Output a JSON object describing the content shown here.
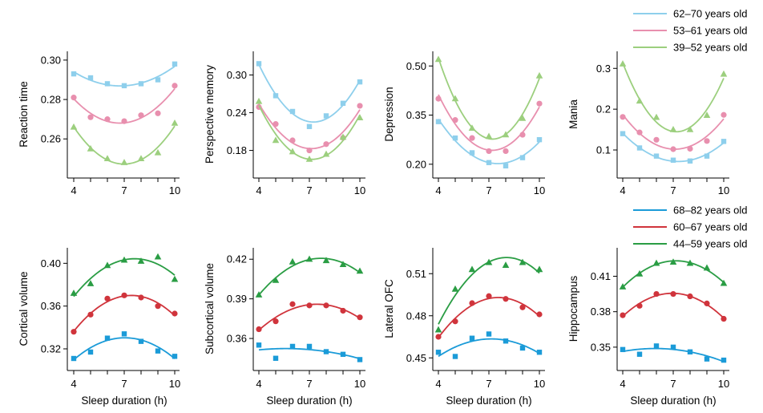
{
  "colors": {
    "top": [
      "#8ecfec",
      "#e88fae",
      "#9ccf7e"
    ],
    "bottom": [
      "#1b9bd8",
      "#d0343c",
      "#2a9d44"
    ]
  },
  "legends": {
    "top": [
      "62–70 years old",
      "53–61 years old",
      "39–52 years old"
    ],
    "bottom": [
      "68–82 years old",
      "60–67 years old",
      "44–59 years old"
    ]
  },
  "xlabel": "Sleep duration (h)",
  "chart_data": [
    {
      "type": "scatter",
      "ylabel": "Reaction time",
      "xlabel": "",
      "xticks": [
        4,
        7,
        10
      ],
      "ylim": [
        0.243,
        0.302
      ],
      "yticks": [
        "0.30",
        "0.28",
        "0.26"
      ],
      "ytick_values": [
        0.3,
        0.28,
        0.26
      ],
      "series": [
        {
          "name": "62–70 years old",
          "marker": "square",
          "x": [
            4,
            5,
            6,
            7,
            8,
            9,
            10
          ],
          "y": [
            0.293,
            0.291,
            0.288,
            0.287,
            0.288,
            0.29,
            0.298
          ]
        },
        {
          "name": "53–61 years old",
          "marker": "circle",
          "x": [
            4,
            5,
            6,
            7,
            8,
            9,
            10
          ],
          "y": [
            0.281,
            0.271,
            0.27,
            0.269,
            0.272,
            0.273,
            0.287
          ]
        },
        {
          "name": "39–52 years old",
          "marker": "triangle",
          "x": [
            4,
            5,
            6,
            7,
            8,
            9,
            10
          ],
          "y": [
            0.266,
            0.255,
            0.25,
            0.248,
            0.25,
            0.253,
            0.268
          ]
        }
      ]
    },
    {
      "type": "scatter",
      "ylabel": "Perspective memory",
      "xlabel": "",
      "xticks": [
        4,
        7,
        10
      ],
      "ylim": [
        0.145,
        0.33
      ],
      "yticks": [
        "0.30",
        "0.24",
        "0.18"
      ],
      "ytick_values": [
        0.3,
        0.24,
        0.18
      ],
      "series": [
        {
          "name": "62–70 years old",
          "marker": "square",
          "x": [
            4,
            5,
            6,
            7,
            8,
            9,
            10
          ],
          "y": [
            0.318,
            0.267,
            0.242,
            0.218,
            0.235,
            0.255,
            0.289
          ]
        },
        {
          "name": "53–61 years old",
          "marker": "circle",
          "x": [
            4,
            5,
            6,
            7,
            8,
            9,
            10
          ],
          "y": [
            0.249,
            0.222,
            0.196,
            0.18,
            0.19,
            0.2,
            0.251
          ]
        },
        {
          "name": "39–52 years old",
          "marker": "triangle",
          "x": [
            4,
            5,
            6,
            7,
            8,
            9,
            10
          ],
          "y": [
            0.258,
            0.196,
            0.178,
            0.166,
            0.174,
            0.201,
            0.232
          ]
        }
      ]
    },
    {
      "type": "scatter",
      "ylabel": "Depression",
      "xlabel": "",
      "xticks": [
        4,
        7,
        10
      ],
      "ylim": [
        0.175,
        0.53
      ],
      "yticks": [
        "0.50",
        "0.35",
        "0.20"
      ],
      "ytick_values": [
        0.5,
        0.35,
        0.2
      ],
      "series": [
        {
          "name": "62–70 years old",
          "marker": "square",
          "x": [
            4,
            5,
            6,
            7,
            8,
            9,
            10
          ],
          "y": [
            0.33,
            0.28,
            0.235,
            0.205,
            0.195,
            0.22,
            0.275
          ]
        },
        {
          "name": "53–61 years old",
          "marker": "circle",
          "x": [
            4,
            5,
            6,
            7,
            8,
            9,
            10
          ],
          "y": [
            0.4,
            0.335,
            0.28,
            0.24,
            0.24,
            0.29,
            0.385
          ]
        },
        {
          "name": "39–52 years old",
          "marker": "triangle",
          "x": [
            4,
            5,
            6,
            7,
            8,
            9,
            10
          ],
          "y": [
            0.52,
            0.4,
            0.31,
            0.285,
            0.29,
            0.34,
            0.47
          ]
        }
      ]
    },
    {
      "type": "scatter",
      "ylabel": "Mania",
      "xlabel": "",
      "xticks": [
        4,
        7,
        10
      ],
      "ylim": [
        0.045,
        0.33
      ],
      "yticks": [
        "0.3",
        "0.2",
        "0.1"
      ],
      "ytick_values": [
        0.3,
        0.2,
        0.1
      ],
      "series": [
        {
          "name": "62–70 years old",
          "marker": "square",
          "x": [
            4,
            5,
            6,
            7,
            8,
            9,
            10
          ],
          "y": [
            0.14,
            0.105,
            0.085,
            0.075,
            0.073,
            0.085,
            0.121
          ]
        },
        {
          "name": "53–61 years old",
          "marker": "circle",
          "x": [
            4,
            5,
            6,
            7,
            8,
            9,
            10
          ],
          "y": [
            0.181,
            0.143,
            0.125,
            0.102,
            0.103,
            0.122,
            0.186
          ]
        },
        {
          "name": "39–52 years old",
          "marker": "triangle",
          "x": [
            4,
            5,
            6,
            7,
            8,
            9,
            10
          ],
          "y": [
            0.311,
            0.22,
            0.18,
            0.15,
            0.15,
            0.185,
            0.286
          ]
        }
      ]
    },
    {
      "type": "scatter",
      "ylabel": "Cortical volume",
      "xlabel": "Sleep duration (h)",
      "xticks": [
        4,
        7,
        10
      ],
      "ylim": [
        0.305,
        0.41
      ],
      "yticks": [
        "0.40",
        "0.36",
        "0.32"
      ],
      "ytick_values": [
        0.4,
        0.36,
        0.32
      ],
      "series": [
        {
          "name": "68–82 years old",
          "marker": "square",
          "x": [
            4,
            5,
            6,
            7,
            8,
            9,
            10
          ],
          "y": [
            0.311,
            0.317,
            0.33,
            0.334,
            0.327,
            0.318,
            0.313
          ]
        },
        {
          "name": "60–67 years old",
          "marker": "circle",
          "x": [
            4,
            5,
            6,
            7,
            8,
            9,
            10
          ],
          "y": [
            0.336,
            0.352,
            0.367,
            0.37,
            0.368,
            0.36,
            0.353
          ]
        },
        {
          "name": "44–59 years old",
          "marker": "triangle",
          "x": [
            4,
            5,
            6,
            7,
            8,
            9,
            10
          ],
          "y": [
            0.372,
            0.381,
            0.398,
            0.403,
            0.402,
            0.406,
            0.385
          ]
        }
      ]
    },
    {
      "type": "scatter",
      "ylabel": "Subcortical volume",
      "xlabel": "Sleep duration (h)",
      "xticks": [
        4,
        7,
        10
      ],
      "ylim": [
        0.34,
        0.425
      ],
      "yticks": [
        "0.42",
        "0.39",
        "0.36"
      ],
      "ytick_values": [
        0.42,
        0.39,
        0.36
      ],
      "series": [
        {
          "name": "68–82 years old",
          "marker": "square",
          "x": [
            4,
            5,
            6,
            7,
            8,
            9,
            10
          ],
          "y": [
            0.355,
            0.345,
            0.354,
            0.354,
            0.35,
            0.348,
            0.344
          ]
        },
        {
          "name": "60–67 years old",
          "marker": "circle",
          "x": [
            4,
            5,
            6,
            7,
            8,
            9,
            10
          ],
          "y": [
            0.367,
            0.373,
            0.386,
            0.385,
            0.385,
            0.381,
            0.376
          ]
        },
        {
          "name": "44–59 years old",
          "marker": "triangle",
          "x": [
            4,
            5,
            6,
            7,
            8,
            9,
            10
          ],
          "y": [
            0.393,
            0.404,
            0.418,
            0.42,
            0.419,
            0.416,
            0.411
          ]
        }
      ]
    },
    {
      "type": "scatter",
      "ylabel": "Lateral OFC",
      "xlabel": "Sleep duration (h)",
      "xticks": [
        4,
        7,
        10
      ],
      "ylim": [
        0.445,
        0.525
      ],
      "yticks": [
        "0.51",
        "0.48",
        "0.45"
      ],
      "ytick_values": [
        0.51,
        0.48,
        0.45
      ],
      "series": [
        {
          "name": "68–82 years old",
          "marker": "square",
          "x": [
            4,
            5,
            6,
            7,
            8,
            9,
            10
          ],
          "y": [
            0.454,
            0.451,
            0.464,
            0.467,
            0.462,
            0.457,
            0.454
          ]
        },
        {
          "name": "60–67 years old",
          "marker": "circle",
          "x": [
            4,
            5,
            6,
            7,
            8,
            9,
            10
          ],
          "y": [
            0.465,
            0.476,
            0.489,
            0.494,
            0.492,
            0.486,
            0.481
          ]
        },
        {
          "name": "44–59 years old",
          "marker": "triangle",
          "x": [
            4,
            5,
            6,
            7,
            8,
            9,
            10
          ],
          "y": [
            0.47,
            0.499,
            0.513,
            0.518,
            0.516,
            0.518,
            0.513
          ]
        }
      ]
    },
    {
      "type": "scatter",
      "ylabel": "Hippocampus",
      "xlabel": "Sleep duration (h)",
      "xticks": [
        4,
        7,
        10
      ],
      "ylim": [
        0.335,
        0.43
      ],
      "yticks": [
        "0.41",
        "0.38",
        "0.35"
      ],
      "ytick_values": [
        0.41,
        0.38,
        0.35
      ],
      "series": [
        {
          "name": "68–82 years old",
          "marker": "square",
          "x": [
            4,
            5,
            6,
            7,
            8,
            9,
            10
          ],
          "y": [
            0.348,
            0.344,
            0.351,
            0.35,
            0.346,
            0.34,
            0.339
          ]
        },
        {
          "name": "60–67 years old",
          "marker": "circle",
          "x": [
            4,
            5,
            6,
            7,
            8,
            9,
            10
          ],
          "y": [
            0.377,
            0.385,
            0.395,
            0.395,
            0.393,
            0.387,
            0.374
          ]
        },
        {
          "name": "44–59 years old",
          "marker": "triangle",
          "x": [
            4,
            5,
            6,
            7,
            8,
            9,
            10
          ],
          "y": [
            0.401,
            0.412,
            0.421,
            0.422,
            0.421,
            0.417,
            0.404
          ]
        }
      ]
    }
  ]
}
